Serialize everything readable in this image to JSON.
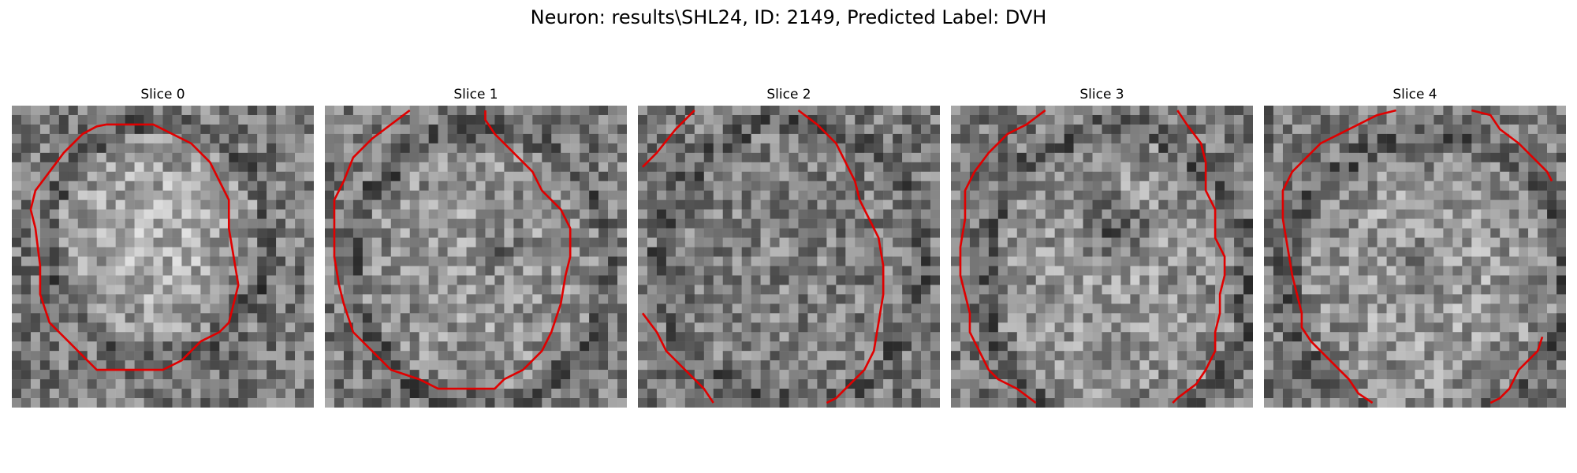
{
  "figure": {
    "title": "Neuron: results\\SHL24, ID: 2149, Predicted Label: DVH"
  },
  "panels": [
    {
      "title": "Slice 0"
    },
    {
      "title": "Slice 1"
    },
    {
      "title": "Slice 2"
    },
    {
      "title": "Slice 3"
    },
    {
      "title": "Slice 4"
    }
  ],
  "colors": {
    "contour": "#e00000"
  }
}
